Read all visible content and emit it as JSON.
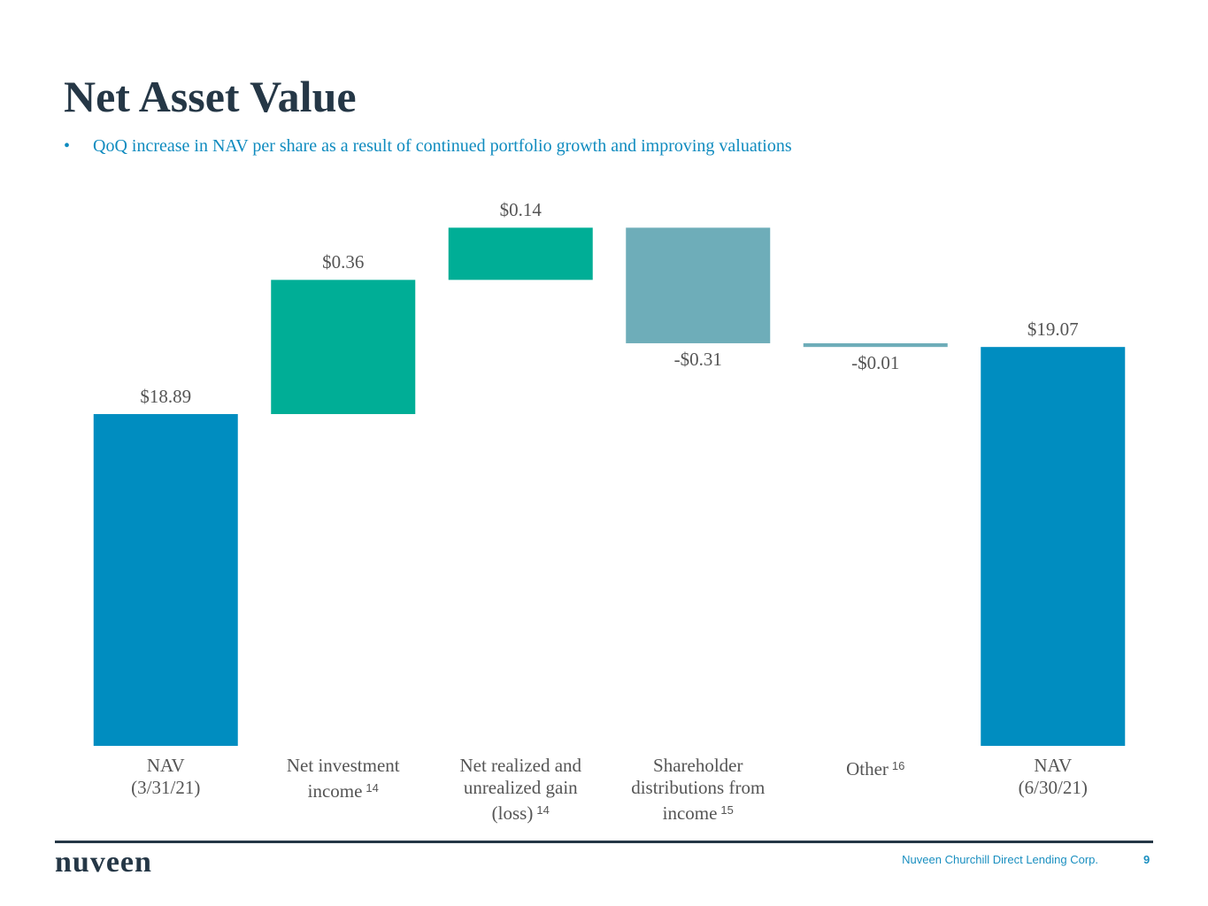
{
  "header": {
    "title": "Net Asset Value",
    "bullet": "QoQ increase in NAV per share as a result of continued portfolio growth and improving valuations"
  },
  "chart_data": {
    "type": "waterfall",
    "categories": [
      [
        "NAV",
        "(3/31/21)"
      ],
      [
        "Net investment",
        "income"
      ],
      [
        "Net realized and",
        "unrealized gain",
        "(loss)"
      ],
      [
        "Shareholder",
        "distributions from",
        "income"
      ],
      [
        "Other"
      ],
      [
        "NAV",
        "(6/30/21)"
      ]
    ],
    "category_notes": [
      null,
      "14",
      "14",
      "15",
      "16",
      null
    ],
    "values": [
      18.89,
      0.36,
      0.14,
      -0.31,
      -0.01,
      19.07
    ],
    "value_labels": [
      "$18.89",
      "$0.36",
      "$0.14",
      "-$0.31",
      "-$0.01",
      "$19.07"
    ],
    "totals": [
      0,
      5
    ],
    "colors": {
      "total": "#008dc0",
      "increase": "#00ae96",
      "decrease": "#6eadb9"
    },
    "ylim": [
      18,
      19.5
    ]
  },
  "footer": {
    "logo": "nuveen",
    "company": "Nuveen Churchill Direct Lending Corp.",
    "page": "9"
  }
}
